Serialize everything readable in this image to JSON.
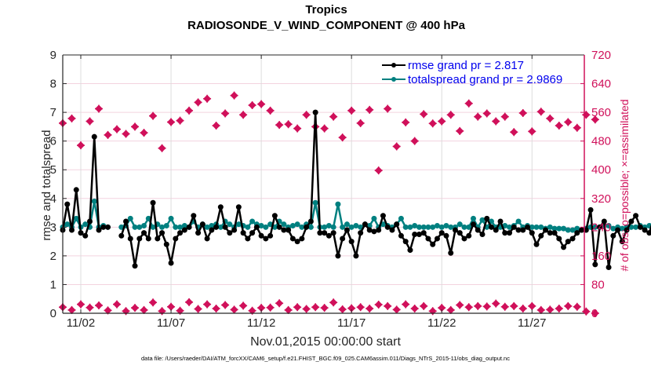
{
  "chart_data": {
    "type": "line",
    "title": "Tropics",
    "subtitle": "RADIOSONDE_V_WIND_COMPONENT @ 400 hPa",
    "xlabel": "Nov.01,2015 00:00:00 start",
    "ylabel": "rmse and totalspread",
    "ylabel_right": "# of obs: o=possible; ×=assimilated",
    "footnote": "data file: /Users/raeder/DAI/ATM_forcXX/CAM6_setup/f.e21.FHIST_BGC.f09_025.CAM6assim.011/Diags_NTrS_2015-11/obs_diag_output.nc",
    "xlim_days": [
      0,
      28.9
    ],
    "ylim": [
      0,
      9
    ],
    "ylim_right": [
      0,
      720
    ],
    "yticks": [
      "0",
      "1",
      "2",
      "3",
      "4",
      "5",
      "6",
      "7",
      "8",
      "9"
    ],
    "yticks_right": [
      "0",
      "80",
      "160",
      "240",
      "320",
      "400",
      "480",
      "560",
      "640",
      "720"
    ],
    "xticks": [
      {
        "day": 1,
        "label": "11/02"
      },
      {
        "day": 6,
        "label": "11/07"
      },
      {
        "day": 11,
        "label": "11/12"
      },
      {
        "day": 16,
        "label": "11/17"
      },
      {
        "day": 21,
        "label": "11/22"
      },
      {
        "day": 26,
        "label": "11/27"
      }
    ],
    "grid": true,
    "legend": {
      "placement": "top-right",
      "entries": [
        {
          "label": "rmse grand pr = 2.817",
          "color": "#000000"
        },
        {
          "label": "totalspread grand pr = 2.9869",
          "color": "#008080"
        }
      ]
    },
    "series": [
      {
        "name": "rmse",
        "color": "#000000",
        "axis": "left",
        "step_days": 0.25,
        "values": [
          2.9,
          3.8,
          2.9,
          4.3,
          2.8,
          2.7,
          3.2,
          6.15,
          2.9,
          3.0,
          3.0,
          null,
          null,
          2.7,
          3.2,
          2.6,
          1.65,
          2.6,
          2.8,
          2.6,
          3.85,
          2.6,
          2.8,
          2.4,
          1.75,
          2.6,
          2.8,
          2.9,
          3.0,
          3.4,
          2.8,
          3.1,
          2.6,
          2.9,
          3.0,
          3.7,
          3.0,
          2.8,
          2.9,
          3.7,
          2.8,
          2.6,
          2.8,
          3.0,
          2.7,
          2.6,
          2.7,
          3.4,
          3.0,
          2.9,
          2.9,
          2.6,
          2.5,
          2.6,
          3.0,
          3.2,
          7.0,
          2.8,
          2.8,
          2.7,
          2.8,
          2.0,
          2.6,
          2.9,
          2.5,
          2.0,
          2.8,
          3.1,
          2.9,
          2.85,
          2.9,
          3.4,
          3.0,
          2.9,
          3.1,
          2.7,
          2.5,
          2.2,
          2.75,
          2.75,
          2.8,
          2.6,
          2.4,
          2.6,
          2.8,
          2.7,
          2.1,
          2.9,
          2.8,
          2.6,
          2.7,
          3.1,
          2.9,
          2.75,
          3.3,
          3.0,
          2.9,
          3.2,
          2.8,
          2.8,
          3.0,
          2.9,
          2.9,
          3.0,
          2.8,
          2.4,
          2.7,
          2.9,
          2.8,
          2.8,
          2.6,
          2.3,
          2.5,
          2.6,
          2.8,
          2.9,
          2.9,
          3.6,
          1.7,
          3.0,
          3.2,
          1.6,
          2.7,
          2.9,
          2.5,
          2.9,
          3.2,
          3.4,
          3.0,
          2.9,
          2.8,
          3.3,
          3.0,
          3.2,
          3.0,
          2.9,
          3.2,
          4.2,
          2.6,
          2.6,
          2.8,
          1.45
        ]
      },
      {
        "name": "totalspread",
        "color": "#008080",
        "axis": "left",
        "step_days": 0.25,
        "values": [
          3.0,
          3.1,
          3.0,
          3.3,
          3.0,
          3.1,
          3.0,
          3.9,
          3.0,
          3.05,
          3.0,
          null,
          null,
          3.0,
          3.05,
          3.3,
          3.0,
          3.0,
          3.05,
          3.3,
          3.0,
          3.1,
          3.0,
          3.05,
          3.3,
          3.0,
          3.0,
          3.05,
          3.0,
          3.2,
          3.0,
          3.1,
          3.0,
          3.05,
          3.1,
          3.0,
          3.2,
          3.1,
          3.0,
          3.1,
          3.05,
          3.0,
          3.2,
          3.1,
          3.05,
          3.0,
          3.1,
          3.0,
          3.2,
          3.1,
          3.0,
          3.05,
          3.1,
          3.0,
          3.1,
          3.0,
          3.85,
          3.0,
          3.0,
          3.05,
          3.0,
          3.8,
          3.0,
          3.1,
          3.0,
          3.05,
          3.0,
          3.1,
          3.05,
          3.3,
          3.0,
          3.1,
          3.05,
          3.0,
          3.1,
          3.3,
          3.0,
          3.0,
          3.05,
          3.0,
          3.0,
          3.0,
          3.0,
          3.05,
          3.0,
          3.05,
          3.0,
          3.0,
          3.1,
          3.0,
          3.0,
          3.3,
          3.0,
          3.25,
          3.0,
          3.2,
          3.0,
          3.0,
          3.05,
          3.0,
          3.05,
          3.2,
          3.0,
          3.05,
          3.0,
          3.0,
          3.0,
          2.95,
          3.0,
          2.95,
          2.95,
          2.95,
          2.9,
          2.9,
          2.95,
          2.9,
          2.95,
          3.0,
          3.0,
          3.0,
          3.05,
          3.05,
          2.95,
          3.0,
          2.95,
          3.0,
          3.0,
          3.0,
          3.05,
          3.0,
          3.05,
          3.0,
          3.1,
          3.0,
          3.05,
          3.0,
          3.05,
          3.0,
          3.0,
          3.0,
          2.95
        ]
      },
      {
        "name": "obs assimilated (00Z/12Z bins)",
        "color": "#d0105a",
        "axis": "right",
        "marker": "plus-diamond",
        "step_days": 0.5,
        "top_values": [
          530,
          543,
          468,
          535,
          570,
          497,
          513,
          500,
          520,
          503,
          550,
          460,
          533,
          537,
          565,
          588,
          598,
          523,
          557,
          607,
          553,
          580,
          583,
          565,
          525,
          527,
          515,
          553,
          520,
          515,
          548,
          490,
          565,
          530,
          567,
          398,
          570,
          465,
          532,
          480,
          555,
          529,
          535,
          553,
          508,
          585,
          548,
          557,
          535,
          548,
          505,
          558,
          507,
          562,
          543,
          523,
          533,
          517,
          553,
          540
        ],
        "bottom_values": [
          17,
          9,
          25,
          16,
          22,
          8,
          25,
          6,
          15,
          9,
          30,
          6,
          18,
          7,
          31,
          12,
          25,
          13,
          23,
          10,
          21,
          7,
          15,
          16,
          28,
          9,
          17,
          12,
          17,
          15,
          30,
          11,
          14,
          17,
          13,
          24,
          20,
          10,
          25,
          13,
          20,
          6,
          15,
          9,
          23,
          17,
          20,
          19,
          27,
          18,
          20,
          13,
          20,
          9,
          10,
          13,
          20,
          18,
          5,
          0
        ]
      }
    ]
  }
}
